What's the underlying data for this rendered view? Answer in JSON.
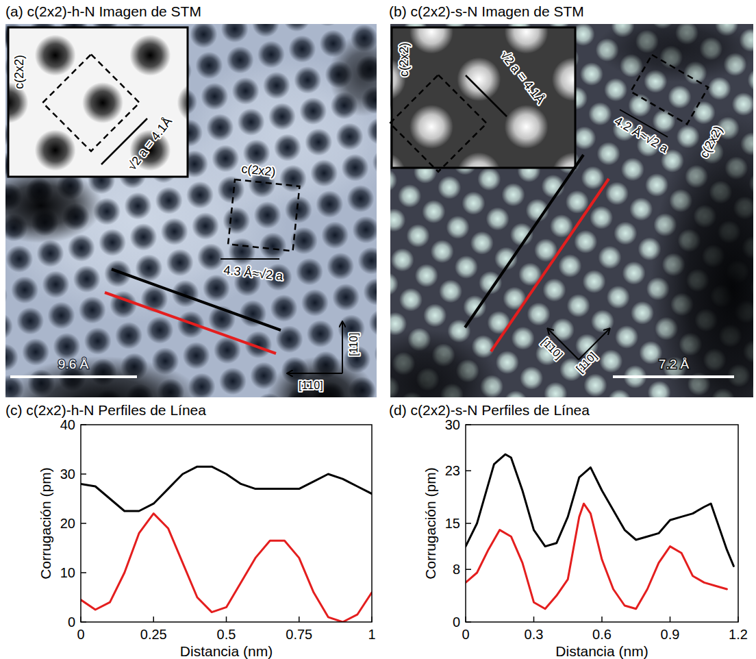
{
  "images": [
    {
      "title": "(a) c(2x2)-h-N Imagen de STM",
      "inset_label": "c(2x2)",
      "inset_spacing": "√2 a = 4.1Å",
      "cell_label": "c(2x2)",
      "cell_spacing": "4.3 Å≈√2 a",
      "scale_bar": "9.6 Å",
      "directions": [
        "[1̄10]",
        "[110]"
      ]
    },
    {
      "title": "(b) c(2x2)-s-N Imagen de STM",
      "inset_label": "c(2x2)",
      "inset_spacing": "√2 a = 4.1Å",
      "cell_label": "c(2x2)",
      "cell_spacing": "4.2 Å≈√2 a",
      "scale_bar": "7.2 Å",
      "directions": [
        "[1̄10]",
        "[110]"
      ]
    }
  ],
  "chart_data": [
    {
      "type": "line",
      "title": "(c) c(2x2)-h-N Perfiles de Línea",
      "x_label": "Distancia (nm)",
      "y_label": "Corrugación (pm)",
      "xlim": [
        0,
        1
      ],
      "xticks": [
        0,
        0.25,
        0.5,
        0.75,
        1
      ],
      "ylim": [
        0,
        40
      ],
      "yticks": [
        0,
        10,
        20,
        30,
        40
      ],
      "grid": false,
      "series": [
        {
          "color": "#000000",
          "x": [
            0,
            0.05,
            0.1,
            0.15,
            0.2,
            0.25,
            0.3,
            0.35,
            0.4,
            0.45,
            0.5,
            0.55,
            0.6,
            0.65,
            0.7,
            0.75,
            0.8,
            0.85,
            0.9,
            0.95,
            1
          ],
          "values": [
            28,
            27.5,
            25,
            22.5,
            22.5,
            24,
            27,
            30,
            31.5,
            31.5,
            30,
            28,
            27,
            27,
            27,
            27,
            28.5,
            30,
            29,
            27.5,
            26
          ]
        },
        {
          "color": "#e41e1e",
          "x": [
            0,
            0.05,
            0.1,
            0.15,
            0.2,
            0.25,
            0.3,
            0.35,
            0.4,
            0.45,
            0.5,
            0.55,
            0.6,
            0.65,
            0.7,
            0.75,
            0.8,
            0.85,
            0.9,
            0.95,
            1
          ],
          "values": [
            4.5,
            2.5,
            4,
            10,
            18,
            22,
            19,
            12,
            5,
            2,
            3,
            8,
            13,
            16.5,
            16.5,
            13,
            6,
            1,
            0,
            1.5,
            6
          ]
        }
      ]
    },
    {
      "type": "line",
      "title": "(d) c(2x2)-s-N Perfiles de Línea",
      "x_label": "Distancia (nm)",
      "y_label": "Corrugación (pm)",
      "xlim": [
        0,
        1.2
      ],
      "xticks": [
        0,
        0.3,
        0.6,
        0.9,
        1.2
      ],
      "ylim": [
        0,
        30
      ],
      "yticks": [
        0,
        8,
        15,
        23,
        30
      ],
      "grid": false,
      "series": [
        {
          "color": "#000000",
          "x": [
            0,
            0.05,
            0.1,
            0.125,
            0.175,
            0.2,
            0.25,
            0.3,
            0.35,
            0.4,
            0.45,
            0.5,
            0.55,
            0.6,
            0.65,
            0.7,
            0.75,
            0.8,
            0.85,
            0.9,
            0.95,
            1,
            1.05,
            1.08,
            1.1,
            1.15,
            1.18
          ],
          "values": [
            11.5,
            15,
            21,
            24,
            25.5,
            25,
            20,
            14,
            11.5,
            12,
            16,
            22,
            23.5,
            20,
            17,
            14,
            12.5,
            13,
            13.5,
            15.5,
            16,
            16.5,
            17.5,
            18,
            16,
            11,
            8.5
          ]
        },
        {
          "color": "#e41e1e",
          "x": [
            0,
            0.05,
            0.1,
            0.15,
            0.2,
            0.25,
            0.3,
            0.35,
            0.4,
            0.45,
            0.5,
            0.52,
            0.55,
            0.6,
            0.65,
            0.7,
            0.75,
            0.8,
            0.85,
            0.9,
            0.95,
            1,
            1.05,
            1.1,
            1.15
          ],
          "values": [
            6,
            7.5,
            11,
            14,
            13,
            9,
            3,
            2,
            4,
            6.5,
            16,
            18,
            16.5,
            9.5,
            5,
            2.5,
            2,
            5,
            9,
            11.5,
            10.5,
            7,
            6,
            5.5,
            5
          ]
        }
      ]
    }
  ]
}
